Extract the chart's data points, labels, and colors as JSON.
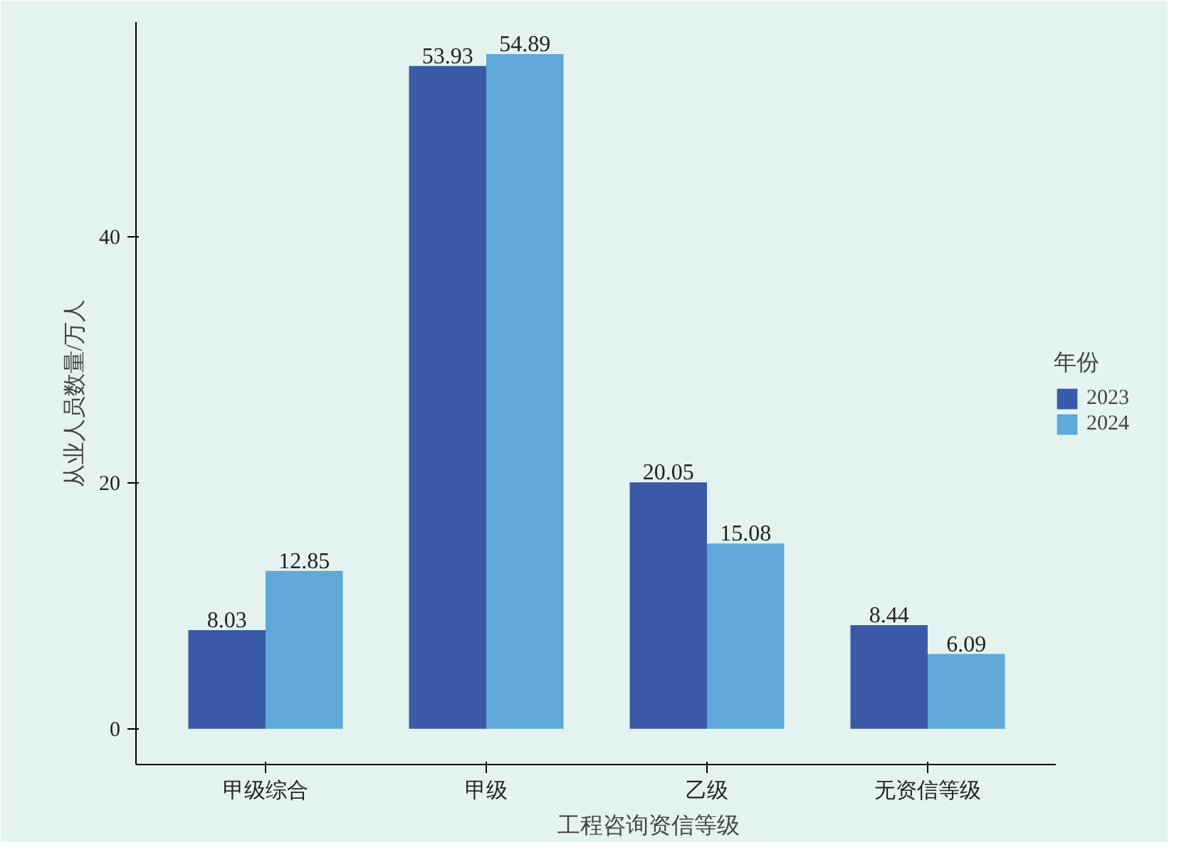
{
  "chart_data": {
    "type": "bar",
    "xlabel": "工程咨询资信等级",
    "ylabel": "从业人员数量/万人",
    "legend_title": "年份",
    "categories": [
      "甲级综合",
      "甲级",
      "乙级",
      "无资信等级"
    ],
    "series": [
      {
        "name": "2023",
        "color": "#3a5aa8",
        "values": [
          8.03,
          53.93,
          20.05,
          8.44
        ]
      },
      {
        "name": "2024",
        "color": "#5fa8d8",
        "values": [
          12.85,
          54.89,
          15.08,
          6.09
        ]
      }
    ],
    "ylim": [
      -2.9,
      57.5
    ],
    "yticks": [
      0,
      20,
      40
    ],
    "grid": false,
    "legend": "right",
    "data_labels": true
  }
}
